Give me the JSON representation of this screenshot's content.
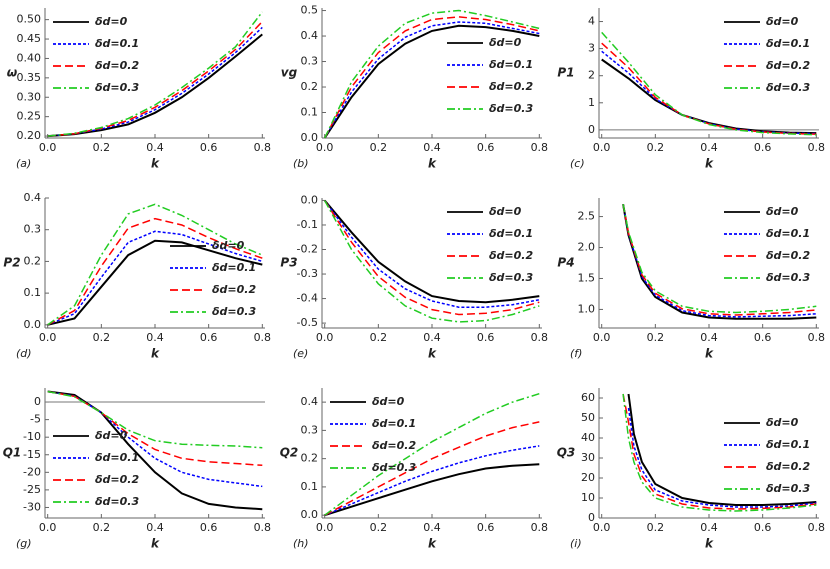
{
  "chart_data": [
    {
      "type": "line",
      "panel_label": "(a)",
      "x_label": "k",
      "y_label": "ω",
      "legend_position": "upper left",
      "zero_line": false,
      "x": [
        0,
        0.1,
        0.2,
        0.3,
        0.4,
        0.5,
        0.6,
        0.7,
        0.8
      ],
      "xlim": [
        -0.01,
        0.81
      ],
      "ylim": [
        0.195,
        0.53
      ],
      "xticks": [
        {
          "value": 0,
          "label": "0.0"
        },
        0.2,
        0.4,
        0.6,
        0.8
      ],
      "yticks": [
        {
          "value": 0.2,
          "label": "0.20"
        },
        0.25,
        {
          "value": 0.3,
          "label": "0.30"
        },
        0.35,
        {
          "value": 0.4,
          "label": "0.40"
        },
        0.45,
        {
          "value": 0.5,
          "label": "0.50"
        }
      ],
      "series": [
        {
          "name": "δd=0",
          "color": "#000000",
          "line_style": "solid",
          "values": [
            0.2,
            0.205,
            0.215,
            0.23,
            0.26,
            0.3,
            0.35,
            0.405,
            0.462
          ]
        },
        {
          "name": "δd=0.1",
          "color": "#0000ff",
          "line_style": "dotted",
          "values": [
            0.2,
            0.206,
            0.218,
            0.236,
            0.268,
            0.31,
            0.36,
            0.415,
            0.48
          ]
        },
        {
          "name": "δd=0.2",
          "color": "#ff0000",
          "line_style": "dashed",
          "values": [
            0.2,
            0.206,
            0.22,
            0.24,
            0.274,
            0.317,
            0.368,
            0.423,
            0.495
          ]
        },
        {
          "name": "δd=0.3",
          "color": "#22cc22",
          "line_style": "dashdot",
          "values": [
            0.2,
            0.207,
            0.222,
            0.245,
            0.28,
            0.325,
            0.375,
            0.43,
            0.52
          ]
        }
      ]
    },
    {
      "type": "line",
      "panel_label": "(b)",
      "x_label": "k",
      "y_label": "vg",
      "legend_position": "center right",
      "zero_line": false,
      "x": [
        0,
        0.1,
        0.2,
        0.3,
        0.4,
        0.5,
        0.6,
        0.7,
        0.8
      ],
      "xlim": [
        -0.01,
        0.81
      ],
      "ylim": [
        0,
        0.51
      ],
      "xticks": [
        {
          "value": 0,
          "label": "0.0"
        },
        0.2,
        0.4,
        0.6,
        0.8
      ],
      "yticks": [
        {
          "value": 0,
          "label": "0.0"
        },
        0.1,
        0.2,
        0.3,
        0.4,
        0.5
      ],
      "series": [
        {
          "name": "δd=0",
          "color": "#000000",
          "line_style": "solid",
          "values": [
            0,
            0.16,
            0.29,
            0.37,
            0.42,
            0.44,
            0.435,
            0.42,
            0.4
          ]
        },
        {
          "name": "δd=0.1",
          "color": "#0000ff",
          "line_style": "dotted",
          "values": [
            0,
            0.18,
            0.31,
            0.395,
            0.44,
            0.455,
            0.45,
            0.43,
            0.41
          ]
        },
        {
          "name": "δd=0.2",
          "color": "#ff0000",
          "line_style": "dashed",
          "values": [
            0,
            0.2,
            0.335,
            0.42,
            0.465,
            0.475,
            0.465,
            0.445,
            0.42
          ]
        },
        {
          "name": "δd=0.3",
          "color": "#22cc22",
          "line_style": "dashdot",
          "values": [
            0,
            0.22,
            0.36,
            0.45,
            0.49,
            0.5,
            0.48,
            0.455,
            0.43
          ]
        }
      ]
    },
    {
      "type": "line",
      "panel_label": "(c)",
      "x_label": "k",
      "y_label": "P1",
      "legend_position": "upper right",
      "zero_line": true,
      "x": [
        0,
        0.1,
        0.2,
        0.3,
        0.4,
        0.5,
        0.6,
        0.7,
        0.8
      ],
      "xlim": [
        -0.01,
        0.81
      ],
      "ylim": [
        -0.3,
        4.5
      ],
      "xticks": [
        {
          "value": 0,
          "label": "0.0"
        },
        0.2,
        0.4,
        0.6,
        0.8
      ],
      "yticks": [
        0,
        1,
        2,
        3,
        4
      ],
      "series": [
        {
          "name": "δd=0",
          "color": "#000000",
          "line_style": "solid",
          "values": [
            2.6,
            1.9,
            1.1,
            0.55,
            0.25,
            0.05,
            -0.05,
            -0.1,
            -0.12
          ]
        },
        {
          "name": "δd=0.1",
          "color": "#0000ff",
          "line_style": "dotted",
          "values": [
            2.9,
            2.1,
            1.15,
            0.55,
            0.23,
            0.03,
            -0.07,
            -0.12,
            -0.14
          ]
        },
        {
          "name": "δd=0.2",
          "color": "#ff0000",
          "line_style": "dashed",
          "values": [
            3.2,
            2.3,
            1.2,
            0.55,
            0.22,
            0.02,
            -0.08,
            -0.13,
            -0.16
          ]
        },
        {
          "name": "δd=0.3",
          "color": "#22cc22",
          "line_style": "dashdot",
          "values": [
            3.6,
            2.5,
            1.3,
            0.55,
            0.2,
            0,
            -0.1,
            -0.15,
            -0.18
          ]
        }
      ]
    },
    {
      "type": "line",
      "panel_label": "(d)",
      "x_label": "k",
      "y_label": "P2",
      "legend_position": "lower right",
      "zero_line": false,
      "x": [
        0,
        0.1,
        0.2,
        0.3,
        0.4,
        0.5,
        0.6,
        0.7,
        0.8
      ],
      "xlim": [
        -0.01,
        0.81
      ],
      "ylim": [
        -0.01,
        0.4
      ],
      "xticks": [
        {
          "value": 0,
          "label": "0.0"
        },
        0.2,
        0.4,
        0.6,
        0.8
      ],
      "yticks": [
        {
          "value": 0,
          "label": "0.0"
        },
        0.1,
        0.2,
        0.3,
        0.4
      ],
      "series": [
        {
          "name": "δd=0",
          "color": "#000000",
          "line_style": "solid",
          "values": [
            0,
            0.02,
            0.12,
            0.22,
            0.265,
            0.26,
            0.235,
            0.21,
            0.19
          ]
        },
        {
          "name": "δd=0.1",
          "color": "#0000ff",
          "line_style": "dotted",
          "values": [
            0,
            0.035,
            0.15,
            0.26,
            0.295,
            0.285,
            0.255,
            0.225,
            0.2
          ]
        },
        {
          "name": "δd=0.2",
          "color": "#ff0000",
          "line_style": "dashed",
          "values": [
            0,
            0.045,
            0.185,
            0.305,
            0.335,
            0.315,
            0.275,
            0.24,
            0.21
          ]
        },
        {
          "name": "δd=0.3",
          "color": "#22cc22",
          "line_style": "dashdot",
          "values": [
            0,
            0.06,
            0.22,
            0.35,
            0.38,
            0.345,
            0.3,
            0.255,
            0.22
          ]
        }
      ]
    },
    {
      "type": "line",
      "panel_label": "(e)",
      "x_label": "k",
      "y_label": "P3",
      "legend_position": "upper right",
      "zero_line": false,
      "x": [
        0,
        0.1,
        0.2,
        0.3,
        0.4,
        0.5,
        0.6,
        0.7,
        0.8
      ],
      "xlim": [
        -0.01,
        0.81
      ],
      "ylim": [
        -0.52,
        0.01
      ],
      "xticks": [
        {
          "value": 0,
          "label": "0.0"
        },
        0.2,
        0.4,
        0.6,
        0.8
      ],
      "yticks": [
        {
          "value": 0,
          "label": "0.0"
        },
        -0.1,
        -0.2,
        -0.3,
        -0.4,
        -0.5
      ],
      "series": [
        {
          "name": "δd=0",
          "color": "#000000",
          "line_style": "solid",
          "values": [
            0,
            -0.13,
            -0.25,
            -0.33,
            -0.39,
            -0.41,
            -0.415,
            -0.405,
            -0.39
          ]
        },
        {
          "name": "δd=0.1",
          "color": "#0000ff",
          "line_style": "dotted",
          "values": [
            0,
            -0.15,
            -0.28,
            -0.36,
            -0.41,
            -0.435,
            -0.435,
            -0.425,
            -0.405
          ]
        },
        {
          "name": "δd=0.2",
          "color": "#ff0000",
          "line_style": "dashed",
          "values": [
            0,
            -0.17,
            -0.31,
            -0.395,
            -0.445,
            -0.465,
            -0.46,
            -0.445,
            -0.415
          ]
        },
        {
          "name": "δd=0.3",
          "color": "#22cc22",
          "line_style": "dashdot",
          "values": [
            0,
            -0.2,
            -0.34,
            -0.43,
            -0.48,
            -0.495,
            -0.49,
            -0.465,
            -0.43
          ]
        }
      ]
    },
    {
      "type": "line",
      "panel_label": "(f)",
      "x_label": "k",
      "y_label": "P4",
      "legend_position": "upper right",
      "zero_line": false,
      "x": [
        0.08,
        0.1,
        0.15,
        0.2,
        0.3,
        0.4,
        0.5,
        0.6,
        0.7,
        0.8
      ],
      "xlim": [
        -0.01,
        0.81
      ],
      "ylim": [
        0.7,
        2.8
      ],
      "xticks": [
        {
          "value": 0,
          "label": "0.0"
        },
        0.2,
        0.4,
        0.6,
        0.8
      ],
      "yticks": [
        {
          "value": 1,
          "label": "1.0"
        },
        1.5,
        {
          "value": 2,
          "label": "2.0"
        },
        2.5
      ],
      "series": [
        {
          "name": "δd=0",
          "color": "#000000",
          "line_style": "solid",
          "values": [
            2.7,
            2.2,
            1.5,
            1.2,
            0.95,
            0.87,
            0.85,
            0.85,
            0.85,
            0.87
          ]
        },
        {
          "name": "δd=0.1",
          "color": "#0000ff",
          "line_style": "dotted",
          "values": [
            2.7,
            2.22,
            1.53,
            1.23,
            0.98,
            0.9,
            0.88,
            0.89,
            0.9,
            0.93
          ]
        },
        {
          "name": "δd=0.2",
          "color": "#ff0000",
          "line_style": "dashed",
          "values": [
            2.7,
            2.23,
            1.56,
            1.26,
            1.01,
            0.93,
            0.91,
            0.93,
            0.95,
            0.99
          ]
        },
        {
          "name": "δd=0.3",
          "color": "#22cc22",
          "line_style": "dashdot",
          "values": [
            2.7,
            2.25,
            1.6,
            1.3,
            1.05,
            0.97,
            0.95,
            0.97,
            1,
            1.05
          ]
        }
      ]
    },
    {
      "type": "line",
      "panel_label": "(g)",
      "x_label": "k",
      "y_label": "Q1",
      "legend_position": "lower left",
      "zero_line": true,
      "x": [
        0,
        0.1,
        0.2,
        0.3,
        0.4,
        0.5,
        0.6,
        0.7,
        0.8
      ],
      "xlim": [
        -0.01,
        0.81
      ],
      "ylim": [
        -33,
        4
      ],
      "xticks": [
        {
          "value": 0,
          "label": "0.0"
        },
        0.2,
        0.4,
        0.6,
        0.8
      ],
      "yticks": [
        0,
        -5,
        -10,
        -15,
        -20,
        -25,
        -30
      ],
      "series": [
        {
          "name": "δd=0",
          "color": "#000000",
          "line_style": "solid",
          "values": [
            3,
            2,
            -3,
            -12,
            -20,
            -26,
            -29,
            -30,
            -30.5
          ]
        },
        {
          "name": "δd=0.1",
          "color": "#0000ff",
          "line_style": "dotted",
          "values": [
            3,
            1.7,
            -3,
            -10,
            -16,
            -20,
            -22,
            -23,
            -24
          ]
        },
        {
          "name": "δd=0.2",
          "color": "#ff0000",
          "line_style": "dashed",
          "values": [
            3,
            1.6,
            -3,
            -9,
            -13.5,
            -16,
            -17,
            -17.5,
            -18
          ]
        },
        {
          "name": "δd=0.3",
          "color": "#22cc22",
          "line_style": "dashdot",
          "values": [
            3,
            1.5,
            -3,
            -8,
            -11,
            -12,
            -12.3,
            -12.5,
            -13
          ]
        }
      ]
    },
    {
      "type": "line",
      "panel_label": "(h)",
      "x_label": "k",
      "y_label": "Q2",
      "legend_position": "upper left",
      "zero_line": false,
      "x": [
        0,
        0.1,
        0.2,
        0.3,
        0.4,
        0.5,
        0.6,
        0.7,
        0.8
      ],
      "xlim": [
        -0.01,
        0.81
      ],
      "ylim": [
        -0.01,
        0.45
      ],
      "xticks": [
        {
          "value": 0,
          "label": "0.0"
        },
        0.2,
        0.4,
        0.6,
        0.8
      ],
      "yticks": [
        {
          "value": 0,
          "label": "0.0"
        },
        0.1,
        0.2,
        0.3,
        0.4
      ],
      "series": [
        {
          "name": "δd=0",
          "color": "#000000",
          "line_style": "solid",
          "values": [
            0,
            0.03,
            0.06,
            0.09,
            0.12,
            0.145,
            0.165,
            0.175,
            0.18
          ]
        },
        {
          "name": "δd=0.1",
          "color": "#0000ff",
          "line_style": "dotted",
          "values": [
            0,
            0.04,
            0.08,
            0.12,
            0.155,
            0.185,
            0.21,
            0.23,
            0.245
          ]
        },
        {
          "name": "δd=0.2",
          "color": "#ff0000",
          "line_style": "dashed",
          "values": [
            0,
            0.05,
            0.1,
            0.15,
            0.2,
            0.24,
            0.28,
            0.31,
            0.33
          ]
        },
        {
          "name": "δd=0.3",
          "color": "#22cc22",
          "line_style": "dashdot",
          "values": [
            0,
            0.07,
            0.14,
            0.2,
            0.26,
            0.31,
            0.36,
            0.4,
            0.43
          ]
        }
      ]
    },
    {
      "type": "line",
      "panel_label": "(i)",
      "x_label": "k",
      "y_label": "Q3",
      "legend_position": "center right",
      "zero_line": false,
      "x": [
        0.08,
        0.1,
        0.12,
        0.15,
        0.2,
        0.3,
        0.4,
        0.5,
        0.6,
        0.7,
        0.8
      ],
      "xlim": [
        -0.01,
        0.81
      ],
      "ylim": [
        0,
        65
      ],
      "xticks": [
        {
          "value": 0,
          "label": "0.0"
        },
        0.2,
        0.4,
        0.6,
        0.8
      ],
      "yticks": [
        0,
        10,
        20,
        30,
        40,
        50,
        60
      ],
      "series": [
        {
          "name": "δd=0",
          "color": "#000000",
          "line_style": "solid",
          "values": [
            null,
            62,
            42,
            28,
            17,
            10,
            7.5,
            6.5,
            6.5,
            7,
            8
          ]
        },
        {
          "name": "δd=0.1",
          "color": "#0000ff",
          "line_style": "dotted",
          "values": [
            null,
            55,
            36,
            24,
            14,
            8.5,
            6.5,
            5.5,
            5.5,
            6,
            7.5
          ]
        },
        {
          "name": "δd=0.2",
          "color": "#ff0000",
          "line_style": "dashed",
          "values": [
            62,
            48,
            32,
            21,
            12,
            7,
            5,
            4.5,
            4.8,
            5.5,
            7
          ]
        },
        {
          "name": "δd=0.3",
          "color": "#22cc22",
          "line_style": "dashdot",
          "values": [
            62,
            40,
            28,
            18,
            10,
            5.5,
            4,
            3.5,
            4,
            5,
            6.5
          ]
        }
      ]
    }
  ]
}
